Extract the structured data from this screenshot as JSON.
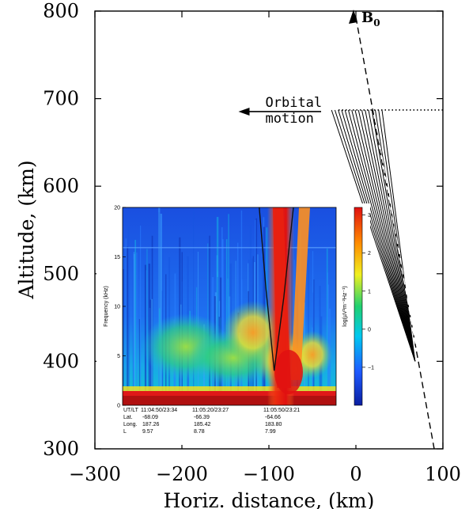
{
  "chart_data": [
    {
      "type": "line",
      "xlabel": "Horiz. distance, (km)",
      "ylabel": "Altitude, (km)",
      "xlim": [
        -300,
        100
      ],
      "ylim": [
        300,
        800
      ],
      "x_ticks": [
        "−300",
        "−200",
        "−100",
        "0",
        "100"
      ],
      "y_ticks": [
        "300",
        "400",
        "500",
        "600",
        "700",
        "800"
      ],
      "grid": false,
      "field_line": {
        "label": "B",
        "label_sub": "0",
        "points": [
          [
            0,
            800
          ],
          [
            90,
            300
          ]
        ]
      },
      "orbit": {
        "altitude": 687,
        "x_range": [
          -20,
          100
        ],
        "arrow_label_line1": "Orbital",
        "arrow_label_line2": "motion",
        "arrow_from_x": -40,
        "arrow_to_x": -135
      },
      "ray_fan": {
        "source": [
          68,
          400
        ],
        "end_altitude": 687,
        "end_x_from": -28,
        "end_x_to": 30,
        "count": 16
      }
    },
    {
      "type": "heatmap",
      "ylabel": "Frequency (kHz)",
      "ylim": [
        0,
        20
      ],
      "y_ticks": [
        "0",
        "5",
        "10",
        "15",
        "20"
      ],
      "colorbar": {
        "label": "log(µV²m⁻²Hz⁻¹)",
        "range": [
          -2,
          3.2
        ],
        "ticks": [
          "3",
          "2",
          "1",
          "0",
          "−1"
        ],
        "colors": [
          "#0a1ea0",
          "#1e5aff",
          "#00c8f0",
          "#20d070",
          "#f0f020",
          "#ff8c00",
          "#e01010"
        ]
      },
      "ephemeris": {
        "row_labels": [
          "UT/LT",
          "Lat.",
          "Long.",
          "L"
        ],
        "columns": [
          {
            "time": "11:04:50/23:34",
            "lat": "-68.09",
            "long": "187.26",
            "L": "9.57"
          },
          {
            "time": "11:05:20/23:27",
            "lat": "-66.39",
            "long": "185.42",
            "L": "8.78"
          },
          {
            "time": "11:05:50/23:21",
            "lat": "-64.66",
            "long": "183.80",
            "L": "7.99"
          }
        ]
      },
      "v_shape": {
        "apex_x_frac": 0.71,
        "apex_freq": 3.5,
        "left_top_frac": 0.64,
        "right_top_frac": 0.8
      }
    }
  ]
}
